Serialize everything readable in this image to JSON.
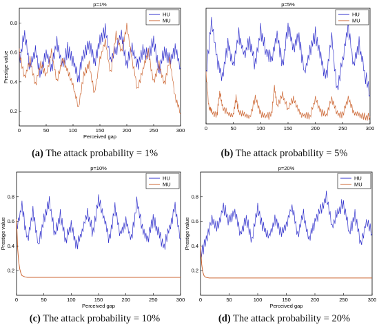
{
  "chart_data": [
    {
      "type": "line",
      "title": "p=1%",
      "xlabel": "Perceived gap",
      "ylabel": "Prestige value",
      "xlim": [
        0,
        300
      ],
      "ylim": [
        0.1,
        0.9
      ],
      "xticks": [
        "0",
        "50",
        "100",
        "150",
        "200",
        "250",
        "300"
      ],
      "yticks": [
        "0.2",
        "0.4",
        "0.6",
        "0.8"
      ],
      "legend": "top-right",
      "series": [
        {
          "name": "HU",
          "color": "#3333cc",
          "x": [
            0,
            10,
            20,
            30,
            40,
            50,
            60,
            70,
            80,
            90,
            100,
            110,
            120,
            130,
            140,
            150,
            160,
            170,
            180,
            190,
            200,
            210,
            220,
            230,
            240,
            250,
            260,
            270,
            280,
            290,
            300
          ],
          "y": [
            0.55,
            0.72,
            0.5,
            0.62,
            0.45,
            0.6,
            0.48,
            0.68,
            0.5,
            0.62,
            0.55,
            0.42,
            0.6,
            0.66,
            0.52,
            0.7,
            0.75,
            0.55,
            0.62,
            0.72,
            0.52,
            0.65,
            0.5,
            0.62,
            0.58,
            0.68,
            0.48,
            0.6,
            0.55,
            0.62,
            0.5
          ]
        },
        {
          "name": "MU",
          "color": "#cc6633",
          "x": [
            0,
            10,
            20,
            30,
            40,
            50,
            60,
            70,
            80,
            90,
            100,
            110,
            120,
            130,
            140,
            150,
            160,
            170,
            180,
            190,
            200,
            210,
            220,
            230,
            240,
            250,
            260,
            270,
            280,
            290,
            300
          ],
          "y": [
            0.6,
            0.42,
            0.55,
            0.38,
            0.52,
            0.45,
            0.6,
            0.4,
            0.55,
            0.48,
            0.38,
            0.22,
            0.45,
            0.52,
            0.32,
            0.55,
            0.68,
            0.45,
            0.72,
            0.6,
            0.78,
            0.55,
            0.35,
            0.48,
            0.6,
            0.4,
            0.52,
            0.38,
            0.55,
            0.3,
            0.18
          ]
        }
      ]
    },
    {
      "type": "line",
      "title": "p=5%",
      "xlabel": "",
      "ylabel": "",
      "xlim": [
        0,
        300
      ],
      "ylim": [
        0.1,
        0.9
      ],
      "xticks": [
        "0",
        "50",
        "100",
        "150",
        "200",
        "250",
        "300"
      ],
      "yticks": [],
      "legend": "top-right",
      "series": [
        {
          "name": "HU",
          "color": "#3333cc",
          "x": [
            0,
            10,
            20,
            30,
            40,
            50,
            60,
            70,
            80,
            90,
            100,
            110,
            120,
            130,
            140,
            150,
            160,
            170,
            180,
            190,
            200,
            210,
            220,
            230,
            240,
            250,
            260,
            270,
            280,
            290,
            300
          ],
          "y": [
            0.45,
            0.82,
            0.55,
            0.42,
            0.65,
            0.5,
            0.72,
            0.58,
            0.68,
            0.5,
            0.75,
            0.6,
            0.55,
            0.72,
            0.5,
            0.78,
            0.62,
            0.7,
            0.45,
            0.6,
            0.72,
            0.55,
            0.42,
            0.7,
            0.32,
            0.55,
            0.78,
            0.5,
            0.65,
            0.45,
            0.3
          ]
        },
        {
          "name": "MU",
          "color": "#cc6633",
          "x": [
            0,
            5,
            10,
            20,
            25,
            30,
            40,
            50,
            55,
            60,
            70,
            80,
            90,
            100,
            110,
            120,
            125,
            130,
            140,
            150,
            160,
            170,
            180,
            190,
            200,
            210,
            220,
            230,
            240,
            250,
            260,
            270,
            280,
            290,
            300
          ],
          "y": [
            0.45,
            0.22,
            0.18,
            0.16,
            0.32,
            0.22,
            0.17,
            0.16,
            0.28,
            0.18,
            0.16,
            0.15,
            0.28,
            0.17,
            0.15,
            0.16,
            0.36,
            0.22,
            0.3,
            0.2,
            0.28,
            0.18,
            0.16,
            0.15,
            0.27,
            0.18,
            0.16,
            0.27,
            0.17,
            0.16,
            0.28,
            0.18,
            0.16,
            0.15,
            0.15
          ]
        }
      ]
    },
    {
      "type": "line",
      "title": "p=10%",
      "xlabel": "Perceived gap",
      "ylabel": "Prestige value",
      "xlim": [
        0,
        300
      ],
      "ylim": [
        0.0,
        1.0
      ],
      "xticks": [
        "0",
        "50",
        "100",
        "150",
        "200",
        "250",
        "300"
      ],
      "yticks": [
        "0.2",
        "0.4",
        "0.6",
        "0.8"
      ],
      "legend": "top-right",
      "series": [
        {
          "name": "HU",
          "color": "#3333cc",
          "x": [
            0,
            10,
            20,
            30,
            40,
            50,
            60,
            70,
            80,
            90,
            100,
            110,
            120,
            130,
            140,
            150,
            160,
            170,
            180,
            190,
            200,
            210,
            220,
            230,
            240,
            250,
            260,
            270,
            280,
            290,
            300
          ],
          "y": [
            0.55,
            0.72,
            0.45,
            0.68,
            0.4,
            0.62,
            0.75,
            0.5,
            0.65,
            0.45,
            0.58,
            0.4,
            0.52,
            0.68,
            0.5,
            0.8,
            0.62,
            0.45,
            0.7,
            0.5,
            0.6,
            0.45,
            0.75,
            0.55,
            0.45,
            0.62,
            0.5,
            0.4,
            0.55,
            0.72,
            0.45
          ]
        },
        {
          "name": "MU",
          "color": "#cc6633",
          "x": [
            0,
            2,
            4,
            6,
            8,
            10,
            15,
            20,
            30,
            50,
            100,
            150,
            200,
            250,
            300
          ],
          "y": [
            0.62,
            0.38,
            0.27,
            0.21,
            0.18,
            0.16,
            0.15,
            0.145,
            0.145,
            0.145,
            0.145,
            0.145,
            0.145,
            0.145,
            0.145
          ]
        }
      ]
    },
    {
      "type": "line",
      "title": "p=20%",
      "xlabel": "Perceived gap",
      "ylabel": "Prestige value",
      "xlim": [
        0,
        300
      ],
      "ylim": [
        0.0,
        1.0
      ],
      "xticks": [
        "0",
        "50",
        "100",
        "150",
        "200",
        "250",
        "300"
      ],
      "yticks": [
        "0.2",
        "0.4",
        "0.6",
        "0.8"
      ],
      "legend": "top-right",
      "series": [
        {
          "name": "HU",
          "color": "#3333cc",
          "x": [
            0,
            10,
            20,
            30,
            40,
            50,
            60,
            70,
            80,
            90,
            100,
            110,
            120,
            130,
            140,
            150,
            160,
            170,
            180,
            190,
            200,
            210,
            220,
            230,
            240,
            250,
            260,
            270,
            280,
            290,
            300
          ],
          "y": [
            0.32,
            0.45,
            0.62,
            0.55,
            0.72,
            0.6,
            0.68,
            0.5,
            0.62,
            0.45,
            0.7,
            0.55,
            0.48,
            0.62,
            0.5,
            0.58,
            0.72,
            0.5,
            0.65,
            0.45,
            0.6,
            0.7,
            0.8,
            0.55,
            0.68,
            0.75,
            0.5,
            0.65,
            0.42,
            0.6,
            0.5
          ]
        },
        {
          "name": "MU",
          "color": "#cc6633",
          "x": [
            0,
            2,
            4,
            6,
            8,
            10,
            15,
            20,
            30,
            50,
            100,
            150,
            200,
            250,
            300
          ],
          "y": [
            0.4,
            0.25,
            0.19,
            0.16,
            0.15,
            0.145,
            0.14,
            0.14,
            0.14,
            0.14,
            0.14,
            0.14,
            0.14,
            0.14,
            0.14
          ]
        }
      ]
    }
  ],
  "captions": [
    {
      "letter": "(a)",
      "text": " The attack probability = 1%"
    },
    {
      "letter": "(b)",
      "text": " The attack probability = 5%"
    },
    {
      "letter": "(c)",
      "text": " The attack probability = 10%"
    },
    {
      "letter": "(d)",
      "text": " The attack probability = 20%"
    }
  ]
}
